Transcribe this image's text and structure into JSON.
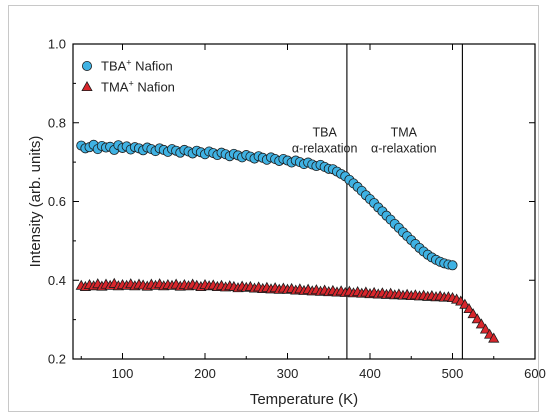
{
  "chart_data": {
    "type": "scatter",
    "title": "",
    "xlabel": "Temperature (K)",
    "ylabel": "Intensity (arb. units)",
    "xlim": [
      40,
      600
    ],
    "ylim": [
      0.2,
      1.0
    ],
    "xticks": [
      100,
      200,
      300,
      400,
      500,
      600
    ],
    "yticks": [
      0.2,
      0.4,
      0.6,
      0.8,
      1.0
    ],
    "xtick_labels": [
      "100",
      "200",
      "300",
      "400",
      "500",
      "600"
    ],
    "ytick_labels": [
      "0.2",
      "0.4",
      "0.6",
      "0.8",
      "1.0"
    ],
    "grid": false,
    "legend_position": "top-left",
    "series": [
      {
        "name_prefix": "TBA",
        "name_sup": "+",
        "name_suffix": " Nafion",
        "marker": "circle",
        "color": "#3fb2e3",
        "x": [
          50,
          55,
          60,
          65,
          70,
          75,
          80,
          85,
          90,
          95,
          100,
          105,
          110,
          115,
          120,
          125,
          130,
          135,
          140,
          145,
          150,
          155,
          160,
          165,
          170,
          175,
          180,
          185,
          190,
          195,
          200,
          205,
          210,
          215,
          220,
          225,
          230,
          235,
          240,
          245,
          250,
          255,
          260,
          265,
          270,
          275,
          280,
          285,
          290,
          295,
          300,
          305,
          310,
          315,
          320,
          325,
          330,
          335,
          340,
          345,
          350,
          355,
          360,
          365,
          370,
          375,
          380,
          385,
          390,
          395,
          400,
          405,
          410,
          415,
          420,
          425,
          430,
          435,
          440,
          445,
          450,
          455,
          460,
          465,
          470,
          475,
          480,
          485,
          490,
          495,
          500
        ],
        "y": [
          0.742,
          0.735,
          0.738,
          0.744,
          0.733,
          0.741,
          0.737,
          0.739,
          0.731,
          0.743,
          0.736,
          0.74,
          0.732,
          0.738,
          0.735,
          0.73,
          0.737,
          0.733,
          0.728,
          0.735,
          0.731,
          0.726,
          0.733,
          0.729,
          0.724,
          0.731,
          0.727,
          0.722,
          0.729,
          0.725,
          0.72,
          0.727,
          0.723,
          0.718,
          0.724,
          0.72,
          0.715,
          0.721,
          0.717,
          0.712,
          0.718,
          0.714,
          0.709,
          0.715,
          0.711,
          0.706,
          0.712,
          0.708,
          0.703,
          0.708,
          0.704,
          0.699,
          0.704,
          0.7,
          0.695,
          0.699,
          0.694,
          0.69,
          0.693,
          0.688,
          0.683,
          0.682,
          0.676,
          0.67,
          0.664,
          0.655,
          0.646,
          0.637,
          0.627,
          0.616,
          0.606,
          0.596,
          0.585,
          0.575,
          0.564,
          0.554,
          0.543,
          0.533,
          0.522,
          0.512,
          0.502,
          0.492,
          0.482,
          0.473,
          0.465,
          0.458,
          0.452,
          0.447,
          0.443,
          0.44,
          0.438
        ]
      },
      {
        "name_prefix": "TMA",
        "name_sup": "+",
        "name_suffix": " Nafion",
        "marker": "triangle",
        "color": "#d9262c",
        "x": [
          50,
          55,
          60,
          65,
          70,
          75,
          80,
          85,
          90,
          95,
          100,
          105,
          110,
          115,
          120,
          125,
          130,
          135,
          140,
          145,
          150,
          155,
          160,
          165,
          170,
          175,
          180,
          185,
          190,
          195,
          200,
          205,
          210,
          215,
          220,
          225,
          230,
          235,
          240,
          245,
          250,
          255,
          260,
          265,
          270,
          275,
          280,
          285,
          290,
          295,
          300,
          305,
          310,
          315,
          320,
          325,
          330,
          335,
          340,
          345,
          350,
          355,
          360,
          365,
          370,
          375,
          380,
          385,
          390,
          395,
          400,
          405,
          410,
          415,
          420,
          425,
          430,
          435,
          440,
          445,
          450,
          455,
          460,
          465,
          470,
          475,
          480,
          485,
          490,
          495,
          500,
          505,
          510,
          515,
          520,
          525,
          530,
          535,
          540,
          545,
          550
        ],
        "y": [
          0.386,
          0.383,
          0.388,
          0.385,
          0.39,
          0.384,
          0.389,
          0.386,
          0.391,
          0.385,
          0.388,
          0.386,
          0.39,
          0.385,
          0.389,
          0.387,
          0.384,
          0.389,
          0.386,
          0.39,
          0.385,
          0.388,
          0.386,
          0.389,
          0.384,
          0.388,
          0.385,
          0.389,
          0.386,
          0.383,
          0.388,
          0.385,
          0.387,
          0.383,
          0.386,
          0.382,
          0.385,
          0.383,
          0.38,
          0.384,
          0.381,
          0.383,
          0.379,
          0.382,
          0.378,
          0.381,
          0.377,
          0.38,
          0.376,
          0.379,
          0.376,
          0.378,
          0.374,
          0.377,
          0.373,
          0.376,
          0.372,
          0.375,
          0.371,
          0.374,
          0.37,
          0.373,
          0.369,
          0.372,
          0.368,
          0.371,
          0.367,
          0.37,
          0.366,
          0.369,
          0.365,
          0.368,
          0.364,
          0.367,
          0.363,
          0.366,
          0.362,
          0.364,
          0.361,
          0.363,
          0.36,
          0.362,
          0.359,
          0.361,
          0.358,
          0.36,
          0.357,
          0.359,
          0.356,
          0.357,
          0.355,
          0.351,
          0.346,
          0.338,
          0.327,
          0.314,
          0.301,
          0.288,
          0.275,
          0.262,
          0.252
        ]
      }
    ],
    "annotations": [
      {
        "lines": [
          "TBA",
          "α-relaxation"
        ],
        "x": 345,
        "y": 0.765
      },
      {
        "lines": [
          "TMA",
          "α-relaxation"
        ],
        "x": 441,
        "y": 0.765
      }
    ],
    "vlines": [
      372,
      512
    ]
  }
}
